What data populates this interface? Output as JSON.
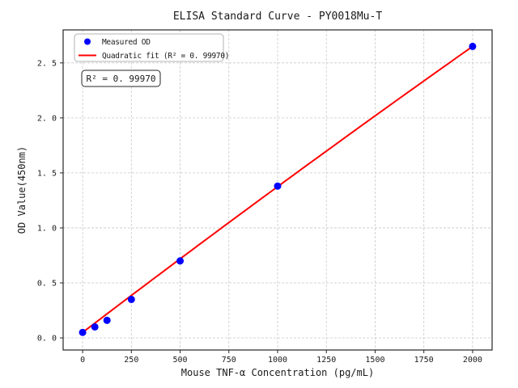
{
  "figure": {
    "title": "ELISA Standard Curve - PY0018Mu-T",
    "annotation": "R² = 0. 99970"
  },
  "chart_data": {
    "type": "scatter",
    "title": "ELISA Standard Curve - PY0018Mu-T",
    "xlabel": "Mouse TNF-α Concentration (pg/mL)",
    "ylabel": "OD Value(450nm)",
    "xlim": [
      -100,
      2100
    ],
    "ylim": [
      -0.11,
      2.8
    ],
    "grid": true,
    "x_ticks": {
      "values": [
        0,
        250,
        500,
        750,
        1000,
        1250,
        1500,
        1750,
        2000
      ],
      "labels": [
        "0",
        "250",
        "500",
        "750",
        "1000",
        "1250",
        "1500",
        "1750",
        "2000"
      ]
    },
    "y_ticks": {
      "values": [
        0.0,
        0.5,
        1.0,
        1.5,
        2.0,
        2.5
      ],
      "labels": [
        "0. 0",
        "0. 5",
        "1. 0",
        "1. 5",
        "2. 0",
        "2. 5"
      ]
    },
    "series": [
      {
        "name": "Measured OD",
        "kind": "scatter",
        "marker": "circle",
        "color": "#0000ff",
        "x": [
          0,
          62.5,
          125,
          250,
          500,
          1000,
          2000
        ],
        "y": [
          0.05,
          0.1,
          0.16,
          0.35,
          0.7,
          1.38,
          2.65
        ]
      },
      {
        "name": "Quadratic fit (R² = 0. 99970)",
        "kind": "line",
        "color": "#ff0000",
        "fit": {
          "form": "quadratic",
          "a": 0.05,
          "b": 0.00135,
          "c": -2.5e-08,
          "x_range": [
            0,
            2000
          ]
        }
      }
    ],
    "legend": {
      "position": "upper left",
      "entries": [
        "Measured OD",
        "Quadratic fit (R² = 0. 99970)"
      ]
    },
    "annotation": {
      "text": "R² = 0. 99970"
    },
    "colors": {
      "marker": "#0000ff",
      "fit_line": "#ff0000",
      "grid": "#c9c9c9",
      "spine": "#262626",
      "background": "#ffffff"
    }
  }
}
